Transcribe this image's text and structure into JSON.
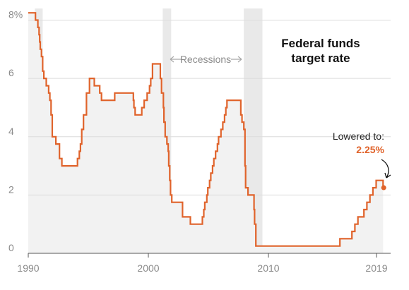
{
  "chart_data": {
    "type": "line",
    "title_lines": [
      "Federal funds",
      "target rate"
    ],
    "x_ticks": [
      {
        "year": 1990,
        "label": "1990"
      },
      {
        "year": 2000,
        "label": "2000"
      },
      {
        "year": 2010,
        "label": "2010"
      },
      {
        "year": 2019,
        "label": "2019"
      }
    ],
    "y_ticks": [
      {
        "value": 0,
        "label": "0"
      },
      {
        "value": 2,
        "label": "2"
      },
      {
        "value": 4,
        "label": "4"
      },
      {
        "value": 6,
        "label": "6"
      },
      {
        "value": 8,
        "label": "8%"
      }
    ],
    "xlim": [
      1990,
      2020.4
    ],
    "ylim": [
      0,
      8.4
    ],
    "grid": true,
    "recessions": [
      [
        1990.55,
        1991.2
      ],
      [
        2001.2,
        2001.9
      ],
      [
        2007.95,
        2009.5
      ]
    ],
    "recessions_label": "Recessions",
    "callout": {
      "label": "Lowered to:",
      "value": "2.25%",
      "at": [
        2019.6,
        2.25
      ]
    },
    "series": [
      {
        "points": [
          [
            1990.0,
            8.25
          ],
          [
            1990.6,
            8.25
          ],
          [
            1990.6,
            8.0
          ],
          [
            1990.8,
            8.0
          ],
          [
            1990.8,
            7.75
          ],
          [
            1990.9,
            7.75
          ],
          [
            1990.9,
            7.5
          ],
          [
            1990.95,
            7.5
          ],
          [
            1990.95,
            7.25
          ],
          [
            1991.0,
            7.25
          ],
          [
            1991.0,
            7.0
          ],
          [
            1991.1,
            7.0
          ],
          [
            1991.1,
            6.75
          ],
          [
            1991.2,
            6.75
          ],
          [
            1991.2,
            6.25
          ],
          [
            1991.3,
            6.25
          ],
          [
            1991.3,
            6.0
          ],
          [
            1991.5,
            6.0
          ],
          [
            1991.5,
            5.75
          ],
          [
            1991.7,
            5.75
          ],
          [
            1991.7,
            5.5
          ],
          [
            1991.8,
            5.5
          ],
          [
            1991.8,
            5.25
          ],
          [
            1991.9,
            5.25
          ],
          [
            1991.9,
            4.75
          ],
          [
            1992.0,
            4.75
          ],
          [
            1992.0,
            4.0
          ],
          [
            1992.3,
            4.0
          ],
          [
            1992.3,
            3.75
          ],
          [
            1992.6,
            3.75
          ],
          [
            1992.6,
            3.25
          ],
          [
            1992.8,
            3.25
          ],
          [
            1992.8,
            3.0
          ],
          [
            1994.1,
            3.0
          ],
          [
            1994.1,
            3.25
          ],
          [
            1994.25,
            3.25
          ],
          [
            1994.25,
            3.5
          ],
          [
            1994.35,
            3.5
          ],
          [
            1994.35,
            3.75
          ],
          [
            1994.45,
            3.75
          ],
          [
            1994.45,
            4.25
          ],
          [
            1994.6,
            4.25
          ],
          [
            1994.6,
            4.75
          ],
          [
            1994.85,
            4.75
          ],
          [
            1994.85,
            5.5
          ],
          [
            1995.1,
            5.5
          ],
          [
            1995.1,
            6.0
          ],
          [
            1995.5,
            6.0
          ],
          [
            1995.5,
            5.75
          ],
          [
            1995.95,
            5.75
          ],
          [
            1995.95,
            5.5
          ],
          [
            1996.1,
            5.5
          ],
          [
            1996.1,
            5.25
          ],
          [
            1997.2,
            5.25
          ],
          [
            1997.2,
            5.5
          ],
          [
            1998.75,
            5.5
          ],
          [
            1998.75,
            5.25
          ],
          [
            1998.8,
            5.25
          ],
          [
            1998.8,
            5.0
          ],
          [
            1998.9,
            5.0
          ],
          [
            1998.9,
            4.75
          ],
          [
            1999.45,
            4.75
          ],
          [
            1999.45,
            5.0
          ],
          [
            1999.65,
            5.0
          ],
          [
            1999.65,
            5.25
          ],
          [
            1999.9,
            5.25
          ],
          [
            1999.9,
            5.5
          ],
          [
            2000.1,
            5.5
          ],
          [
            2000.1,
            5.75
          ],
          [
            2000.2,
            5.75
          ],
          [
            2000.2,
            6.0
          ],
          [
            2000.35,
            6.0
          ],
          [
            2000.35,
            6.5
          ],
          [
            2001.0,
            6.5
          ],
          [
            2001.0,
            6.0
          ],
          [
            2001.1,
            6.0
          ],
          [
            2001.1,
            5.5
          ],
          [
            2001.25,
            5.5
          ],
          [
            2001.25,
            5.0
          ],
          [
            2001.3,
            5.0
          ],
          [
            2001.3,
            4.5
          ],
          [
            2001.4,
            4.5
          ],
          [
            2001.4,
            4.0
          ],
          [
            2001.55,
            4.0
          ],
          [
            2001.55,
            3.75
          ],
          [
            2001.65,
            3.75
          ],
          [
            2001.65,
            3.5
          ],
          [
            2001.7,
            3.5
          ],
          [
            2001.7,
            3.0
          ],
          [
            2001.78,
            3.0
          ],
          [
            2001.78,
            2.5
          ],
          [
            2001.85,
            2.5
          ],
          [
            2001.85,
            2.0
          ],
          [
            2001.95,
            2.0
          ],
          [
            2001.95,
            1.75
          ],
          [
            2002.85,
            1.75
          ],
          [
            2002.85,
            1.25
          ],
          [
            2003.5,
            1.25
          ],
          [
            2003.5,
            1.0
          ],
          [
            2004.5,
            1.0
          ],
          [
            2004.5,
            1.25
          ],
          [
            2004.62,
            1.25
          ],
          [
            2004.62,
            1.5
          ],
          [
            2004.7,
            1.5
          ],
          [
            2004.7,
            1.75
          ],
          [
            2004.87,
            1.75
          ],
          [
            2004.87,
            2.0
          ],
          [
            2004.95,
            2.0
          ],
          [
            2004.95,
            2.25
          ],
          [
            2005.1,
            2.25
          ],
          [
            2005.1,
            2.5
          ],
          [
            2005.2,
            2.5
          ],
          [
            2005.2,
            2.75
          ],
          [
            2005.35,
            2.75
          ],
          [
            2005.35,
            3.0
          ],
          [
            2005.45,
            3.0
          ],
          [
            2005.45,
            3.25
          ],
          [
            2005.6,
            3.25
          ],
          [
            2005.6,
            3.5
          ],
          [
            2005.75,
            3.5
          ],
          [
            2005.75,
            3.75
          ],
          [
            2005.85,
            3.75
          ],
          [
            2005.85,
            4.0
          ],
          [
            2006.05,
            4.0
          ],
          [
            2006.05,
            4.25
          ],
          [
            2006.2,
            4.25
          ],
          [
            2006.2,
            4.5
          ],
          [
            2006.35,
            4.5
          ],
          [
            2006.35,
            4.75
          ],
          [
            2006.45,
            4.75
          ],
          [
            2006.45,
            5.0
          ],
          [
            2006.55,
            5.0
          ],
          [
            2006.55,
            5.25
          ],
          [
            2007.7,
            5.25
          ],
          [
            2007.7,
            4.75
          ],
          [
            2007.8,
            4.75
          ],
          [
            2007.8,
            4.5
          ],
          [
            2007.95,
            4.5
          ],
          [
            2007.95,
            4.25
          ],
          [
            2008.05,
            4.25
          ],
          [
            2008.05,
            3.0
          ],
          [
            2008.1,
            3.0
          ],
          [
            2008.1,
            2.25
          ],
          [
            2008.3,
            2.25
          ],
          [
            2008.3,
            2.0
          ],
          [
            2008.8,
            2.0
          ],
          [
            2008.8,
            1.5
          ],
          [
            2008.85,
            1.5
          ],
          [
            2008.85,
            1.0
          ],
          [
            2008.95,
            1.0
          ],
          [
            2008.95,
            0.25
          ],
          [
            2015.95,
            0.25
          ],
          [
            2015.95,
            0.5
          ],
          [
            2016.95,
            0.5
          ],
          [
            2016.95,
            0.75
          ],
          [
            2017.2,
            0.75
          ],
          [
            2017.2,
            1.0
          ],
          [
            2017.45,
            1.0
          ],
          [
            2017.45,
            1.25
          ],
          [
            2017.95,
            1.25
          ],
          [
            2017.95,
            1.5
          ],
          [
            2018.2,
            1.5
          ],
          [
            2018.2,
            1.75
          ],
          [
            2018.45,
            1.75
          ],
          [
            2018.45,
            2.0
          ],
          [
            2018.7,
            2.0
          ],
          [
            2018.7,
            2.25
          ],
          [
            2018.97,
            2.25
          ],
          [
            2018.97,
            2.5
          ],
          [
            2019.55,
            2.5
          ],
          [
            2019.55,
            2.25
          ]
        ]
      }
    ]
  }
}
